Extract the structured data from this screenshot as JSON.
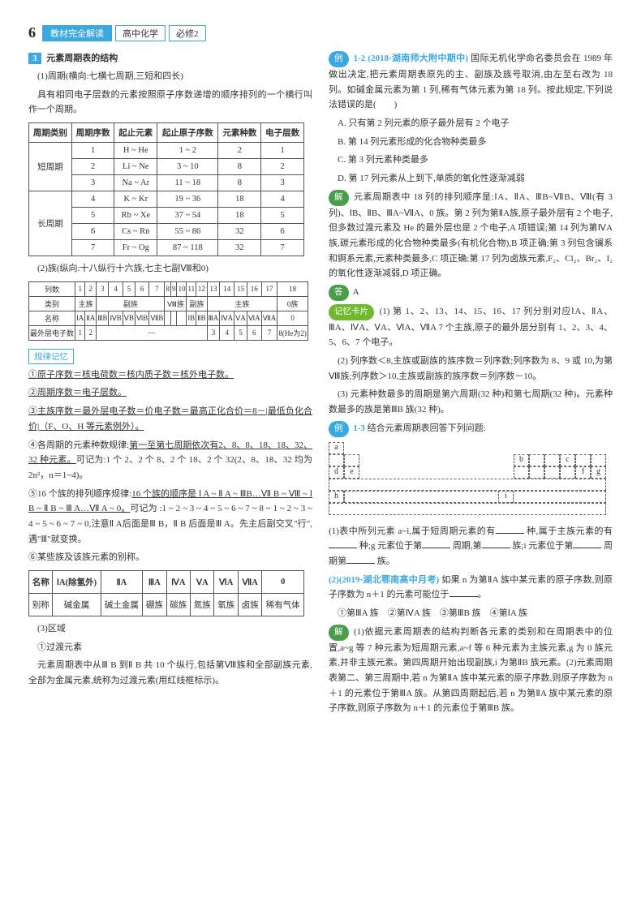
{
  "header": {
    "page_num": "6",
    "title_box": "教材完全解读",
    "subject": "高中化学",
    "book": "必修2"
  },
  "left": {
    "sec3_num": "3",
    "sec3_title": "元素周期表的结构",
    "p1": "(1)周期(横向:七横七周期,三短和四长)",
    "p2": "具有相同电子层数的元素按照原子序数递增的顺序排列的一个横行叫作一个周期。",
    "t1_headers": [
      "周期类别",
      "周期序数",
      "起止元素",
      "起止原子序数",
      "元素种数",
      "电子层数"
    ],
    "t1_rows": [
      [
        "短周期",
        "1",
        "H ~ He",
        "1 ~ 2",
        "2",
        "1"
      ],
      [
        "",
        "2",
        "Li ~ Ne",
        "3 ~ 10",
        "8",
        "2"
      ],
      [
        "",
        "3",
        "Na ~ Ar",
        "11 ~ 18",
        "8",
        "3"
      ],
      [
        "长周期",
        "4",
        "K ~ Kr",
        "19 ~ 36",
        "18",
        "4"
      ],
      [
        "",
        "5",
        "Rb ~ Xe",
        "37 ~ 54",
        "18",
        "5"
      ],
      [
        "",
        "6",
        "Cs ~ Rn",
        "55 ~ 86",
        "32",
        "6"
      ],
      [
        "",
        "7",
        "Fr ~ Og",
        "87 ~ 118",
        "32",
        "7"
      ]
    ],
    "p3": "(2)族(纵向:十八纵行十六族,七主七副Ⅷ和0)",
    "t2_h": [
      "列数",
      "1",
      "2",
      "3",
      "4",
      "5",
      "6",
      "7",
      "8",
      "9",
      "10",
      "11",
      "12",
      "13",
      "14",
      "15",
      "16",
      "17",
      "18"
    ],
    "t2_r1": [
      "类别",
      "主族",
      "副族",
      "",
      "",
      "",
      "Ⅷ族",
      "",
      "",
      "副族",
      "",
      "主族",
      "",
      "",
      "",
      "",
      "0族"
    ],
    "t2_r2": [
      "名称",
      "ⅠA",
      "ⅡA",
      "ⅢB",
      "ⅣB",
      "ⅤB",
      "ⅥB",
      "ⅦB",
      "",
      "",
      "",
      "ⅠB",
      "ⅡB",
      "ⅢA",
      "ⅣA",
      "ⅤA",
      "ⅥA",
      "ⅦA",
      "0"
    ],
    "t2_r3": [
      "最外层电子数",
      "1",
      "2",
      "—",
      "",
      "",
      "",
      "",
      "",
      "",
      "",
      "",
      "",
      "3",
      "4",
      "5",
      "6",
      "7",
      "8(He为2)"
    ],
    "rule_tag": "规律记忆",
    "r1": "①原子序数＝核电荷数＝核内质子数＝核外电子数。",
    "r2": "②周期序数＝电子层数。",
    "r3": "③主族序数＝最外层电子数＝价电子数＝最高正化合价＝8－|最低负化合价|（F、O、H 等元素例外）。",
    "r4a": "④各周期的元素种数规律:",
    "r4b": "第一至第七周期依次有2、8、8、18、18、32、32 种元素。",
    "r4c": "可记为:1 个 2、2 个 8、2 个 18、2 个 32(2、8、18、32 均为 2n²，n＝1~4)。",
    "r5a": "⑤16 个族的排列顺序规律:",
    "r5b": "16 个族的顺序是 Ⅰ A ~ Ⅱ A ~ ⅢB…Ⅶ B ~ Ⅷ ~ Ⅰ B ~ Ⅱ B ~ Ⅲ A…Ⅶ A ~ 0。",
    "r5c": "可记为 :1 ~ 2 ~ 3 ~ 4 ~ 5 ~ 6 ~ 7 ~ 8 ~ 1 ~ 2 ~ 3 ~ 4 ~ 5 ~ 6 ~ 7 ~ 0,注意Ⅱ A后面是Ⅲ B，Ⅱ B 后面是Ⅲ A。先主后副交叉\"行\",遇\"Ⅲ\"就变换。",
    "r6": "⑥某些族及该族元素的别称。",
    "t3_h": [
      "名称",
      "ⅠA(除氢外)",
      "ⅡA",
      "ⅢA",
      "ⅣA",
      "ⅤA",
      "ⅥA",
      "ⅦA",
      "0"
    ],
    "t3_r": [
      "别称",
      "碱金属",
      "碱土金属",
      "硼族",
      "碳族",
      "氮族",
      "氧族",
      "卤族",
      "稀有气体"
    ],
    "p4": "(3)区域",
    "p5": "①过渡元素",
    "p6": "元素周期表中从Ⅲ B 到Ⅱ B 共 10 个纵行,包括第Ⅷ族和全部副族元素,全部为金属元素,统称为过渡元素(用红线框标示)。"
  },
  "right": {
    "ex12_tag": "例",
    "ex12_num": "1-2",
    "ex12_src": "(2018·湖南师大附中期中)",
    "ex12_q": "国际无机化学命名委员会在 1989 年做出决定,把元素周期表原先的主、副族及族号取消,由左至右改为 18 列。如碱金属元素为第 1 列,稀有气体元素为第 18 列。按此规定,下列说法错误的是(　　)",
    "ex12_a": "A. 只有第 2 列元素的原子最外层有 2 个电子",
    "ex12_b": "B. 第 14 列元素形成的化合物种类最多",
    "ex12_c": "C. 第 3 列元素种类最多",
    "ex12_d": "D. 第 17 列元素从上到下,单质的氧化性逐渐减弱",
    "sol_tag": "解",
    "sol12": "元素周期表中 18 列的排列顺序是:ⅠA、ⅡA、ⅢB~ⅦB、Ⅷ(有 3 列)、ⅠB、ⅡB、ⅢA~ⅦA、0 族。第 2 列为第ⅡA族,原子最外层有 2 个电子,但多数过渡元素及 He 的最外层也是 2 个电子,A 项错误;第 14 列为第ⅣA 族,碳元素形成的化合物种类最多(有机化合物),B 项正确;第 3 列包含镧系和锕系元素,元素种类最多,C 项正确;第 17 列为卤族元素,F₂、Cl₂、Br₂、I₂ 的氧化性逐渐减弱,D 项正确。",
    "ans_tag": "答",
    "ans12": "A",
    "mem_tag": "记忆卡片",
    "mem1": "(1) 第 1、2、13、14、15、16、17 列分别对应ⅠA、ⅡA、ⅢA、ⅣA、ⅤA、ⅥA、ⅦA 7 个主族,原子的最外层分别有 1、2、3、4、5、6、7 个电子。",
    "mem2": "(2) 列序数＜8,主族或副族的族序数＝列序数;列序数为 8、9 或 10,为第Ⅷ族;列序数＞10,主族或副族的族序数＝列序数－10。",
    "mem3": "(3) 元素种数最多的周期是第六周期(32 种)和第七周期(32 种)。元素种数最多的族是第ⅢB 族(32 种)。",
    "ex13_tag": "例",
    "ex13_num": "1-3",
    "ex13_q": "结合元素周期表回答下列问题:",
    "pd_labels": [
      "a",
      "b",
      "c",
      "d",
      "e",
      "f",
      "g",
      "h",
      "i"
    ],
    "ex13_1a": "(1)表中所列元素 a~i,属于短周期元素的有",
    "ex13_1b": "种,属于主族元素的有",
    "ex13_1c": "种;g 元素位于第",
    "ex13_1d": "周期,第",
    "ex13_1e": "族;i 元素位于第",
    "ex13_1f": "周期第",
    "ex13_1g": "族。",
    "ex13_2src": "(2)(2019·湖北鄂南高中月考)",
    "ex13_2": "如果 n 为第ⅡA 族中某元素的原子序数,则原子序数为 n＋1 的元素可能位于",
    "ex13_opts": "①第ⅢA 族　②第ⅣA 族　③第ⅢB 族　④第ⅠA 族",
    "sol13_tag": "解",
    "sol13": "(1)依据元素周期表的结构判断各元素的类别和在周期表中的位置,a~g 等 7 种元素为短周期元素,a~f 等 6 种元素为主族元素,g 为 0 族元素,并非主族元素。第四周期开始出现副族,i 为第ⅡB 族元素。(2)元素周期表第二、第三周期中,若 n 为第ⅡA 族中某元素的原子序数,则原子序数为 n＋1 的元素位于第ⅢA 族。从第四周期起后,若 n 为第ⅡA 族中某元素的原子序数,则原子序数为 n＋1 的元素位于第ⅢB 族。"
  }
}
